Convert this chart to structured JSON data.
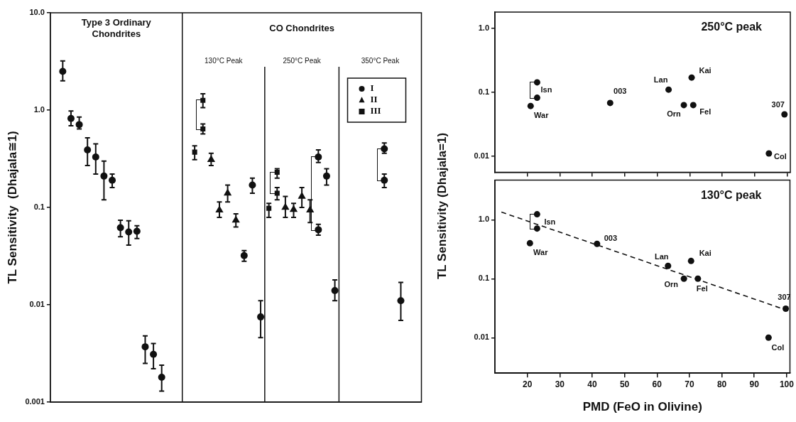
{
  "chart_data": [
    {
      "type": "scatter",
      "ylabel": "TL Sensitivity  (Dhajala≅1)",
      "log": true,
      "ylim": [
        0.001,
        10
      ],
      "yticks": [
        {
          "value": 0.001,
          "label": "0.001"
        },
        {
          "value": 0.01,
          "label": "0.01"
        },
        {
          "value": 0.1,
          "label": "0.1"
        },
        {
          "value": 1,
          "label": "1.0"
        },
        {
          "value": 10,
          "label": "10.0"
        }
      ],
      "tick_labels": "y",
      "legend": "top right",
      "annotations": [
        "Type 3 Ordinary Chondrites",
        "CO Chondrites",
        "130°C Peak",
        "250°C Peak",
        "350°C Peak"
      ],
      "categories": [
        null,
        null,
        null,
        null,
        null,
        null,
        null,
        null,
        null,
        null,
        null,
        null,
        null,
        null,
        null,
        null,
        null,
        null,
        null,
        null,
        null,
        null,
        null,
        null,
        null,
        null,
        null,
        null,
        null,
        null,
        null,
        null,
        null,
        null,
        null,
        null,
        null,
        null,
        null,
        null,
        null,
        null,
        null,
        null,
        null
      ],
      "series": [
        {
          "name": "I",
          "color": "#111111",
          "marker": "circle",
          "values": [
            null,
            2.5,
            0.82,
            0.71,
            0.39,
            0.33,
            0.21,
            0.19,
            0.062,
            0.056,
            0.057,
            0.0037,
            0.0031,
            0.0018,
            null,
            null,
            null,
            null,
            null,
            null,
            null,
            null,
            null,
            0.032,
            0.17,
            0.0075,
            null,
            null,
            null,
            null,
            null,
            null,
            0.33,
            0.21,
            0.014,
            null,
            null,
            null,
            null,
            null,
            0.4,
            null,
            0.011,
            null,
            null
          ],
          "errors": [
            null,
            [
              2.0,
              3.2
            ],
            [
              0.69,
              0.98
            ],
            [
              0.64,
              0.85
            ],
            [
              0.27,
              0.52
            ],
            [
              0.22,
              0.45
            ],
            [
              0.12,
              0.3
            ],
            [
              0.16,
              0.22
            ],
            [
              0.05,
              0.074
            ],
            [
              0.041,
              0.073
            ],
            [
              0.048,
              0.065
            ],
            [
              0.0025,
              0.0048
            ],
            [
              0.0022,
              0.004
            ],
            [
              0.0013,
              0.0024
            ],
            null,
            null,
            null,
            null,
            null,
            null,
            null,
            null,
            null,
            [
              0.028,
              0.036
            ],
            [
              0.14,
              0.2
            ],
            [
              0.0046,
              0.011
            ],
            null,
            null,
            null,
            null,
            null,
            null,
            [
              0.29,
              0.39
            ],
            [
              0.17,
              0.25
            ],
            [
              0.011,
              0.018
            ],
            null,
            null,
            null,
            null,
            null,
            [
              0.36,
              0.46
            ],
            null,
            [
              0.0069,
              0.017
            ],
            null,
            null
          ]
        },
        {
          "color": "#111111",
          "marker": "circle",
          "values": [
            null,
            null,
            null,
            null,
            null,
            null,
            null,
            null,
            null,
            null,
            null,
            null,
            null,
            null,
            null,
            null,
            null,
            null,
            null,
            null,
            null,
            null,
            null,
            null,
            null,
            null,
            null,
            null,
            null,
            null,
            null,
            null,
            0.059,
            null,
            null,
            null,
            null,
            null,
            null,
            null,
            0.19,
            null,
            null,
            null,
            null
          ],
          "errors": [
            null,
            null,
            null,
            null,
            null,
            null,
            null,
            null,
            null,
            null,
            null,
            null,
            null,
            null,
            null,
            null,
            null,
            null,
            null,
            null,
            null,
            null,
            null,
            null,
            null,
            null,
            null,
            null,
            null,
            null,
            null,
            null,
            [
              0.052,
              0.067
            ],
            null,
            null,
            null,
            null,
            null,
            null,
            null,
            [
              0.16,
              0.22
            ],
            null,
            null,
            null,
            null
          ]
        },
        {
          "name": "II",
          "color": "#111111",
          "marker": "triangle",
          "values": [
            null,
            null,
            null,
            null,
            null,
            null,
            null,
            null,
            null,
            null,
            null,
            null,
            null,
            null,
            null,
            null,
            null,
            null,
            null,
            0.31,
            0.094,
            0.14,
            0.074,
            null,
            null,
            null,
            null,
            null,
            0.1,
            0.095,
            0.13,
            0.094,
            null,
            null,
            null,
            null,
            null,
            null,
            null,
            null,
            null,
            null,
            null,
            null,
            null
          ],
          "errors": [
            null,
            null,
            null,
            null,
            null,
            null,
            null,
            null,
            null,
            null,
            null,
            null,
            null,
            null,
            null,
            null,
            null,
            null,
            null,
            [
              0.27,
              0.36
            ],
            [
              0.079,
              0.114
            ],
            [
              0.114,
              0.17
            ],
            [
              0.063,
              0.086
            ],
            null,
            null,
            null,
            null,
            null,
            [
              0.079,
              0.13
            ],
            [
              0.079,
              0.11
            ],
            [
              0.1,
              0.16
            ],
            [
              0.07,
              0.12
            ],
            null,
            null,
            null,
            null,
            null,
            null,
            null,
            null,
            null,
            null,
            null,
            null,
            null
          ]
        },
        {
          "name": "III",
          "color": "#111111",
          "marker": "square",
          "values": [
            null,
            null,
            null,
            null,
            null,
            null,
            null,
            null,
            null,
            null,
            null,
            null,
            null,
            null,
            null,
            null,
            null,
            0.37,
            1.26,
            null,
            null,
            null,
            null,
            null,
            null,
            null,
            0.098,
            0.23,
            null,
            null,
            null,
            null,
            null,
            null,
            null,
            null,
            null,
            null,
            null,
            null,
            null,
            null,
            null,
            null,
            null
          ],
          "errors": [
            null,
            null,
            null,
            null,
            null,
            null,
            null,
            null,
            null,
            null,
            null,
            null,
            null,
            null,
            null,
            null,
            null,
            [
              0.31,
              0.43
            ],
            [
              1.06,
              1.47
            ],
            null,
            null,
            null,
            null,
            null,
            null,
            null,
            [
              0.079,
              0.11
            ],
            [
              0.2,
              0.25
            ],
            null,
            null,
            null,
            null,
            null,
            null,
            null,
            null,
            null,
            null,
            null,
            null,
            null,
            null,
            null,
            null,
            null
          ]
        },
        {
          "color": "#111111",
          "marker": "square",
          "values": [
            null,
            null,
            null,
            null,
            null,
            null,
            null,
            null,
            null,
            null,
            null,
            null,
            null,
            null,
            null,
            null,
            null,
            null,
            0.64,
            null,
            null,
            null,
            null,
            null,
            null,
            null,
            null,
            0.14,
            null,
            null,
            null,
            null,
            null,
            null,
            null,
            null,
            null,
            null,
            null,
            null,
            null,
            null,
            null,
            null,
            null
          ],
          "errors": [
            null,
            null,
            null,
            null,
            null,
            null,
            null,
            null,
            null,
            null,
            null,
            null,
            null,
            null,
            null,
            null,
            null,
            null,
            [
              0.57,
              0.72
            ],
            null,
            null,
            null,
            null,
            null,
            null,
            null,
            null,
            [
              0.12,
              0.16
            ],
            null,
            null,
            null,
            null,
            null,
            null,
            null,
            null,
            null,
            null,
            null,
            null,
            null,
            null,
            null,
            null,
            null
          ]
        }
      ]
    },
    {
      "type": "scatter",
      "title": "250°C peak",
      "log": true,
      "xlim": [
        10,
        101
      ],
      "xticks": [
        20,
        30,
        40,
        50,
        60,
        70,
        80,
        90,
        100
      ],
      "ylim": [
        0.0056,
        1.8
      ],
      "yticks": [
        {
          "value": 0.01,
          "label": "0.01"
        },
        {
          "value": 0.1,
          "label": "0.1"
        },
        {
          "value": 1,
          "label": "1.0"
        }
      ],
      "tick_labels": "y",
      "marker": "circle",
      "series": [
        {
          "color": "#111111",
          "x": [
            23,
            23,
            21,
            45.5,
            63.5,
            70.6,
            68.2,
            71.1,
            99.2,
            94.4
          ],
          "values": [
            0.143,
            0.082,
            0.061,
            0.068,
            0.11,
            0.17,
            0.063,
            0.063,
            0.045,
            0.011
          ]
        }
      ],
      "annotations": [
        {
          "text": "Isn",
          "x": 23,
          "y": 0.143
        },
        {
          "text": "War",
          "x": 21,
          "y": 0.061
        },
        {
          "text": "003",
          "x": 45.5,
          "y": 0.068
        },
        {
          "text": "Lan",
          "x": 63.5,
          "y": 0.11
        },
        {
          "text": "Kai",
          "x": 70.6,
          "y": 0.17
        },
        {
          "text": "Orn",
          "x": 68.2,
          "y": 0.063
        },
        {
          "text": "Fel",
          "x": 71.1,
          "y": 0.063
        },
        {
          "text": "307",
          "x": 99.2,
          "y": 0.045
        },
        {
          "text": "Col",
          "x": 94.4,
          "y": 0.011
        }
      ]
    },
    {
      "type": "scatter",
      "title": "130°C peak",
      "xlabel": "PMD (FeO in Olivine)",
      "ylabel": "TL Sensitivity (Dhajala=1)",
      "log": true,
      "xlim": [
        10,
        101
      ],
      "xticks": [
        20,
        30,
        40,
        50,
        60,
        70,
        80,
        90,
        100
      ],
      "ylim": [
        0.0025,
        4.7
      ],
      "yticks": [
        {
          "value": 0.01,
          "label": "0.01"
        },
        {
          "value": 0.1,
          "label": "0.1"
        },
        {
          "value": 1,
          "label": "1.0"
        }
      ],
      "marker": "circle",
      "series": [
        {
          "color": "#111111",
          "x": [
            23,
            23,
            20.8,
            41.5,
            63.4,
            70.5,
            68.3,
            72.6,
            99.7,
            94.4
          ],
          "values": [
            1.24,
            0.71,
            0.4,
            0.39,
            0.165,
            0.2,
            0.1,
            0.1,
            0.031,
            0.01
          ]
        },
        {
          "type": "line",
          "color": "#111111",
          "x": [
            12,
            101
          ],
          "values": [
            1.35,
            0.028
          ],
          "line_style": "dashed",
          "marker": "none"
        }
      ],
      "annotations": [
        {
          "text": "Isn",
          "x": 23,
          "y": 1.24
        },
        {
          "text": "War",
          "x": 20.8,
          "y": 0.4
        },
        {
          "text": "003",
          "x": 41.5,
          "y": 0.39
        },
        {
          "text": "Lan",
          "x": 63.4,
          "y": 0.165
        },
        {
          "text": "Kai",
          "x": 70.5,
          "y": 0.2
        },
        {
          "text": "Orn",
          "x": 68.3,
          "y": 0.1
        },
        {
          "text": "Fel",
          "x": 72.6,
          "y": 0.1
        },
        {
          "text": "307",
          "x": 99.7,
          "y": 0.031
        },
        {
          "text": "Col",
          "x": 94.4,
          "y": 0.01
        }
      ]
    }
  ]
}
